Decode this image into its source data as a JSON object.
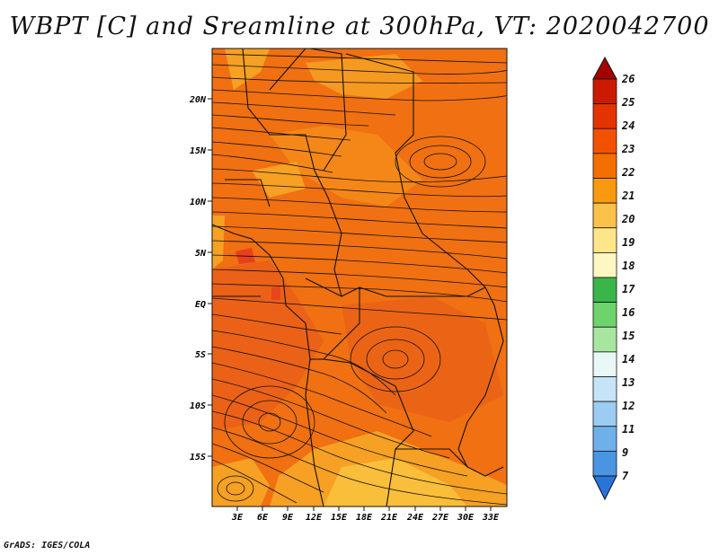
{
  "title": "WBPT [C] and Sreamline at 300hPa, VT: 2020042700",
  "footer": "GrADS: IGES/COLA",
  "map": {
    "lon_labels": [
      "3E",
      "6E",
      "9E",
      "12E",
      "15E",
      "18E",
      "21E",
      "24E",
      "27E",
      "30E",
      "33E"
    ],
    "lat_labels": [
      "20N",
      "15N",
      "10N",
      "5N",
      "EQ",
      "5S",
      "10S",
      "15S"
    ]
  },
  "colorbar": {
    "levels": [
      "26",
      "25",
      "24",
      "23",
      "22",
      "21",
      "20",
      "19",
      "18",
      "17",
      "16",
      "15",
      "14",
      "13",
      "12",
      "11",
      "9",
      "7"
    ],
    "colors": [
      "#a50000",
      "#cc1a00",
      "#e53300",
      "#f25200",
      "#f56e00",
      "#f89a10",
      "#fbc24a",
      "#fde68a",
      "#fff7c2",
      "#39b54a",
      "#6ed36a",
      "#a8e6a0",
      "#e9f8f6",
      "#c6e4f7",
      "#9cccf1",
      "#6eb1ea",
      "#4a95e2",
      "#2874d8"
    ]
  },
  "palette": {
    "field_main": "#f07012",
    "field_dark": "#e85b1a",
    "field_light": "#f6a024",
    "field_pale": "#f9be3a",
    "field_hot": "#e8401c"
  }
}
